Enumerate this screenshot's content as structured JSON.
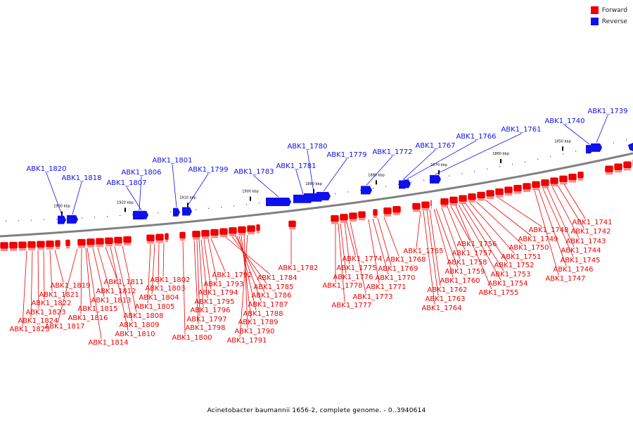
{
  "legend": {
    "forward_label": "Forward",
    "forward_color": "#ee0000",
    "reverse_label": "Reverse",
    "reverse_color": "#1010ee"
  },
  "caption": "Acinetobacter baumannii 1656-2, complete genome. - 0..3940614",
  "axis_ticks": [
    "1930 kbp",
    "1920 kbp",
    "1910 kbp",
    "1900 kbp",
    "1890 kbp",
    "1880 kbp",
    "1870 kbp",
    "1860 kbp",
    "1850 kbp"
  ],
  "reverse_genes": [
    "ABK1_1820",
    "ABK1_1818",
    "ABK1_1807",
    "ABK1_1806",
    "ABK1_1801",
    "ABK1_1799",
    "ABK1_1783",
    "ABK1_1781",
    "ABK1_1780",
    "ABK1_1779",
    "ABK1_1772",
    "ABK1_1767",
    "ABK1_1766",
    "ABK1_1761",
    "ABK1_1740",
    "ABK1_1739"
  ],
  "forward_genes": [
    "ABK1_1825",
    "ABK1_1824",
    "ABK1_1823",
    "ABK1_1822",
    "ABK1_1821",
    "ABK1_1819",
    "ABK1_1817",
    "ABK1_1816",
    "ABK1_1815",
    "ABK1_1814",
    "ABK1_1813",
    "ABK1_1812",
    "ABK1_1811",
    "ABK1_1810",
    "ABK1_1809",
    "ABK1_1808",
    "ABK1_1805",
    "ABK1_1804",
    "ABK1_1803",
    "ABK1_1802",
    "ABK1_1800",
    "ABK1_1798",
    "ABK1_1797",
    "ABK1_1796",
    "ABK1_1795",
    "ABK1_1794",
    "ABK1_1793",
    "ABK1_1792",
    "ABK1_1791",
    "ABK1_1790",
    "ABK1_1789",
    "ABK1_1788",
    "ABK1_1787",
    "ABK1_1786",
    "ABK1_1785",
    "ABK1_1784",
    "ABK1_1782",
    "ABK1_1778",
    "ABK1_1777",
    "ABK1_1776",
    "ABK1_1775",
    "ABK1_1774",
    "ABK1_1773",
    "ABK1_1771",
    "ABK1_1770",
    "ABK1_1769",
    "ABK1_1768",
    "ABK1_1765",
    "ABK1_1764",
    "ABK1_1763",
    "ABK1_1762",
    "ABK1_1760",
    "ABK1_1759",
    "ABK1_1758",
    "ABK1_1757",
    "ABK1_1756",
    "ABK1_1755",
    "ABK1_1754",
    "ABK1_1753",
    "ABK1_1752",
    "ABK1_1751",
    "ABK1_1750",
    "ABK1_1749",
    "ABK1_1748",
    "ABK1_1747",
    "ABK1_1746",
    "ABK1_1745",
    "ABK1_1744",
    "ABK1_1743",
    "ABK1_1742",
    "ABK1_1741"
  ]
}
